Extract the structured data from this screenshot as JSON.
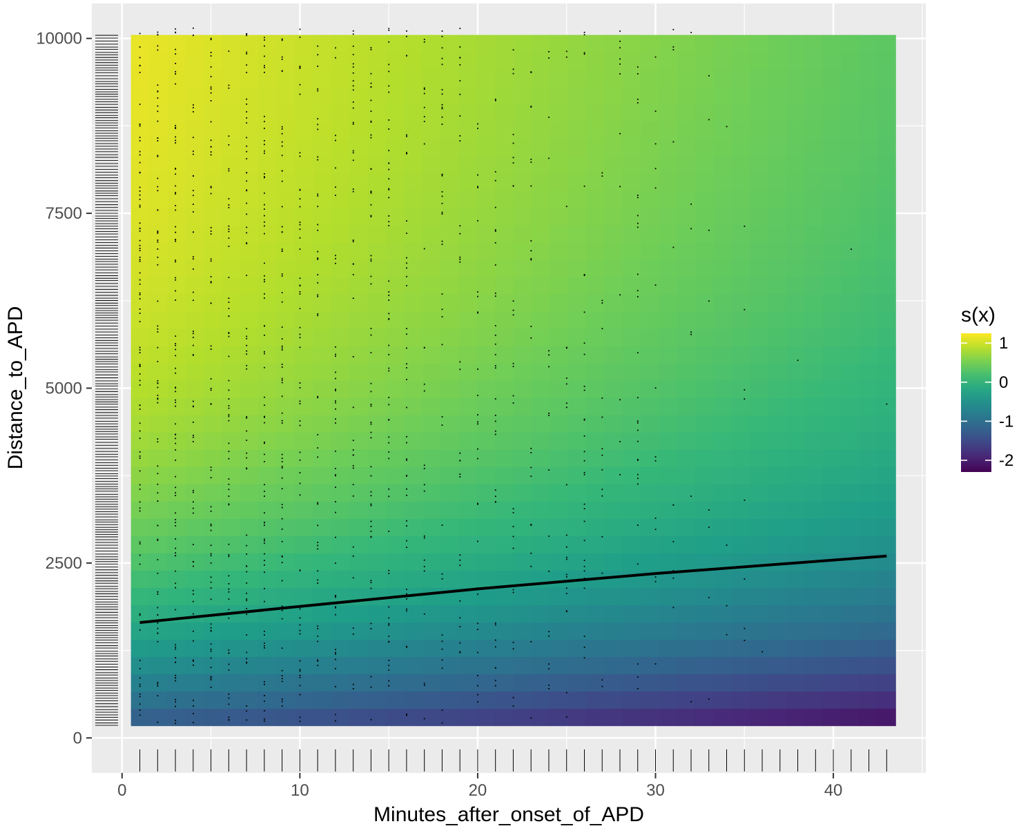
{
  "chart_data": {
    "type": "heatmap",
    "xlabel": "Minutes_after_onset_of_APD",
    "ylabel": "Distance_to_APD",
    "legend": {
      "title": "s(x)",
      "placement": "right",
      "ticks": [
        1,
        0,
        -1,
        -2
      ],
      "range": [
        -2.3,
        1.25
      ],
      "colormap": "viridis"
    },
    "xlim": [
      -1.7,
      45.2
    ],
    "ylim": [
      -500,
      10500
    ],
    "xticks": [
      0,
      10,
      20,
      30,
      40
    ],
    "yticks": [
      0,
      2500,
      5000,
      7500,
      10000
    ],
    "grid": true,
    "surface": {
      "description_x_range": [
        0.5,
        43.5
      ],
      "y_range": [
        175,
        10050
      ],
      "grid_nx": 42,
      "grid_ny": 40,
      "corner_values": {
        "x1_y10000": 1.2,
        "x43_y10000": 0.3,
        "x1_y250": -1.3,
        "x43_y250": -2.2
      }
    },
    "contour_line": {
      "label": "",
      "x": [
        1,
        10,
        20,
        30,
        43
      ],
      "y": [
        1650,
        1880,
        2130,
        2350,
        2600
      ]
    },
    "rug_x": [
      1,
      2,
      3,
      4,
      5,
      6,
      7,
      8,
      9,
      10,
      11,
      12,
      13,
      14,
      15,
      16,
      17,
      18,
      19,
      20,
      21,
      22,
      23,
      24,
      25,
      26,
      27,
      28,
      29,
      30,
      31,
      32,
      33,
      34,
      35,
      36,
      37,
      38,
      39,
      40,
      41,
      42,
      43
    ],
    "colors": {
      "panel_background": "#ebebeb",
      "grid_major": "#ffffff",
      "points": "#000000",
      "contour": "#000000"
    }
  }
}
